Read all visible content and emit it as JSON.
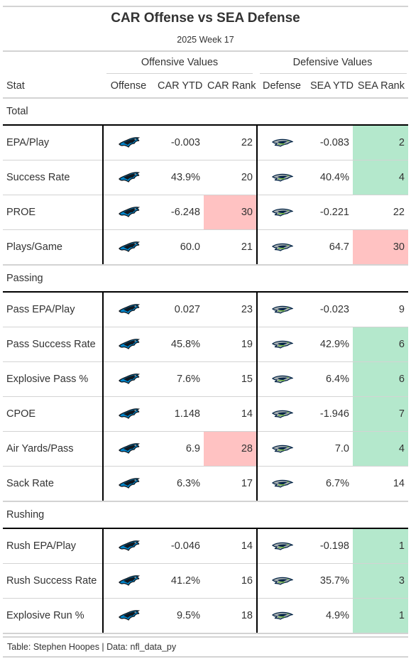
{
  "header": {
    "title": "CAR Offense vs SEA Defense",
    "subtitle": "2025 Week 17"
  },
  "spanners": {
    "offense": "Offensive Values",
    "defense": "Defensive Values"
  },
  "columns": [
    "Stat",
    "Offense",
    "CAR YTD",
    "CAR Rank",
    "Defense",
    "SEA YTD",
    "SEA Rank"
  ],
  "icons": {
    "offense": "panthers-logo-icon",
    "defense": "seahawks-logo-icon"
  },
  "colors": {
    "good_rank": "#b4e8cc",
    "bad_rank": "#ffc2c2",
    "divider": "#000000"
  },
  "groups": [
    {
      "name": "Total",
      "rows": [
        {
          "stat": "EPA/Play",
          "car_ytd": "-0.003",
          "car_rank": "22",
          "car_rank_hl": "",
          "sea_ytd": "-0.083",
          "sea_rank": "2",
          "sea_rank_hl": "good"
        },
        {
          "stat": "Success Rate",
          "car_ytd": "43.9%",
          "car_rank": "20",
          "car_rank_hl": "",
          "sea_ytd": "40.4%",
          "sea_rank": "4",
          "sea_rank_hl": "good"
        },
        {
          "stat": "PROE",
          "car_ytd": "-6.248",
          "car_rank": "30",
          "car_rank_hl": "bad",
          "sea_ytd": "-0.221",
          "sea_rank": "22",
          "sea_rank_hl": ""
        },
        {
          "stat": "Plays/Game",
          "car_ytd": "60.0",
          "car_rank": "21",
          "car_rank_hl": "",
          "sea_ytd": "64.7",
          "sea_rank": "30",
          "sea_rank_hl": "bad"
        }
      ]
    },
    {
      "name": "Passing",
      "rows": [
        {
          "stat": "Pass EPA/Play",
          "car_ytd": "0.027",
          "car_rank": "23",
          "car_rank_hl": "",
          "sea_ytd": "-0.023",
          "sea_rank": "9",
          "sea_rank_hl": ""
        },
        {
          "stat": "Pass Success Rate",
          "car_ytd": "45.8%",
          "car_rank": "19",
          "car_rank_hl": "",
          "sea_ytd": "42.9%",
          "sea_rank": "6",
          "sea_rank_hl": "good"
        },
        {
          "stat": "Explosive Pass %",
          "car_ytd": "7.6%",
          "car_rank": "15",
          "car_rank_hl": "",
          "sea_ytd": "6.4%",
          "sea_rank": "6",
          "sea_rank_hl": "good"
        },
        {
          "stat": "CPOE",
          "car_ytd": "1.148",
          "car_rank": "14",
          "car_rank_hl": "",
          "sea_ytd": "-1.946",
          "sea_rank": "7",
          "sea_rank_hl": "good"
        },
        {
          "stat": "Air Yards/Pass",
          "car_ytd": "6.9",
          "car_rank": "28",
          "car_rank_hl": "bad",
          "sea_ytd": "7.0",
          "sea_rank": "4",
          "sea_rank_hl": "good"
        },
        {
          "stat": "Sack Rate",
          "car_ytd": "6.3%",
          "car_rank": "17",
          "car_rank_hl": "",
          "sea_ytd": "6.7%",
          "sea_rank": "14",
          "sea_rank_hl": ""
        }
      ]
    },
    {
      "name": "Rushing",
      "rows": [
        {
          "stat": "Rush EPA/Play",
          "car_ytd": "-0.046",
          "car_rank": "14",
          "car_rank_hl": "",
          "sea_ytd": "-0.198",
          "sea_rank": "1",
          "sea_rank_hl": "good"
        },
        {
          "stat": "Rush Success Rate",
          "car_ytd": "41.2%",
          "car_rank": "16",
          "car_rank_hl": "",
          "sea_ytd": "35.7%",
          "sea_rank": "3",
          "sea_rank_hl": "good"
        },
        {
          "stat": "Explosive Run %",
          "car_ytd": "9.5%",
          "car_rank": "18",
          "car_rank_hl": "",
          "sea_ytd": "4.9%",
          "sea_rank": "1",
          "sea_rank_hl": "good"
        }
      ]
    }
  ],
  "footer": {
    "source": "Table: Stephen Hoopes | Data: nfl_data_py"
  }
}
